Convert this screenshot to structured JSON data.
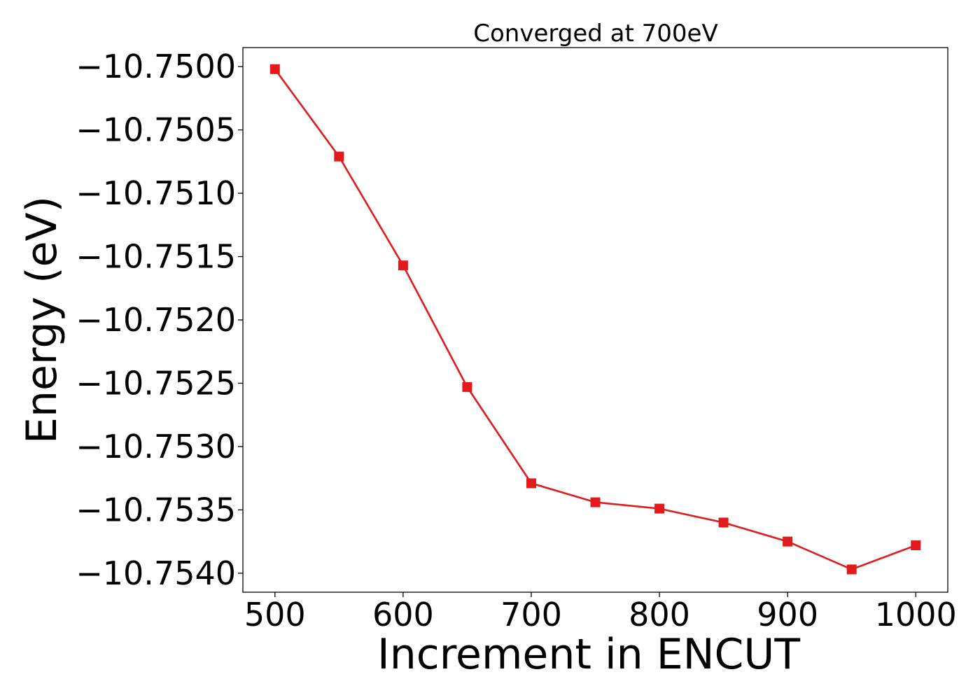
{
  "chart_data": {
    "type": "line",
    "title": "Converged at 700eV",
    "xlabel": "Increment in ENCUT",
    "ylabel": "Energy (eV)",
    "xlim": [
      475,
      1025
    ],
    "ylim": [
      -10.75415,
      -10.74985
    ],
    "xticks": [
      500,
      600,
      700,
      800,
      900,
      1000
    ],
    "xtick_labels": [
      "500",
      "600",
      "700",
      "800",
      "900",
      "1000"
    ],
    "yticks": [
      -10.75,
      -10.7505,
      -10.751,
      -10.7515,
      -10.752,
      -10.7525,
      -10.753,
      -10.7535,
      -10.754
    ],
    "ytick_labels": [
      "−10.7500",
      "−10.7505",
      "−10.7510",
      "−10.7515",
      "−10.7520",
      "−10.7525",
      "−10.7530",
      "−10.7535",
      "−10.7540"
    ],
    "grid": false,
    "legend": "none",
    "series": [
      {
        "color": "#e31a1c",
        "marker": "square",
        "x": [
          500,
          550,
          600,
          650,
          700,
          750,
          800,
          850,
          900,
          950,
          1000
        ],
        "y": [
          -10.75002,
          -10.75071,
          -10.75157,
          -10.75253,
          -10.75329,
          -10.75344,
          -10.75349,
          -10.7536,
          -10.75375,
          -10.75397,
          -10.75378
        ]
      }
    ]
  }
}
